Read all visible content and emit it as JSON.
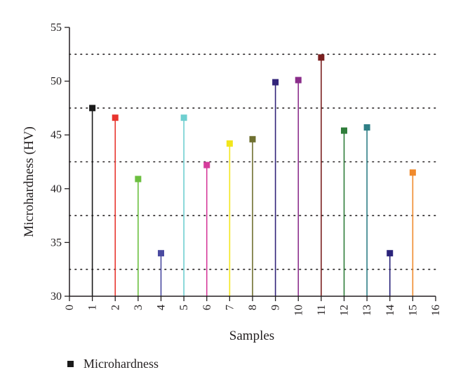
{
  "chart_data": {
    "type": "scatter",
    "style": "stem",
    "xlabel": "Samples",
    "ylabel": "Microhardness (HV)",
    "xlim": [
      0,
      16
    ],
    "ylim": [
      30,
      55
    ],
    "xticks": [
      0,
      1,
      2,
      3,
      4,
      5,
      6,
      7,
      8,
      9,
      10,
      11,
      12,
      13,
      14,
      15,
      16
    ],
    "yticks": [
      30,
      35,
      40,
      45,
      50,
      55
    ],
    "grid": {
      "horizontal_dotted_at": [
        32.5,
        37.5,
        42.5,
        47.5,
        52.5
      ]
    },
    "legend": {
      "position": "bottom-left",
      "label": "Microhardness"
    },
    "points": [
      {
        "x": 1,
        "y": 47.5,
        "color": "#1a1a1a"
      },
      {
        "x": 2,
        "y": 46.6,
        "color": "#e8352e"
      },
      {
        "x": 3,
        "y": 40.9,
        "color": "#6cbf3f"
      },
      {
        "x": 4,
        "y": 34.0,
        "color": "#4a4aa0"
      },
      {
        "x": 5,
        "y": 46.6,
        "color": "#6fcfd0"
      },
      {
        "x": 6,
        "y": 42.2,
        "color": "#d63c9c"
      },
      {
        "x": 7,
        "y": 44.2,
        "color": "#f2e61c"
      },
      {
        "x": 8,
        "y": 44.6,
        "color": "#6f7030"
      },
      {
        "x": 9,
        "y": 49.9,
        "color": "#33257a"
      },
      {
        "x": 10,
        "y": 50.1,
        "color": "#8a2d8a"
      },
      {
        "x": 11,
        "y": 52.2,
        "color": "#7a1f1f"
      },
      {
        "x": 12,
        "y": 45.4,
        "color": "#2f7d3a"
      },
      {
        "x": 13,
        "y": 45.7,
        "color": "#2f7f86"
      },
      {
        "x": 14,
        "y": 34.0,
        "color": "#2a237a"
      },
      {
        "x": 15,
        "y": 41.5,
        "color": "#f08a2c"
      }
    ]
  }
}
